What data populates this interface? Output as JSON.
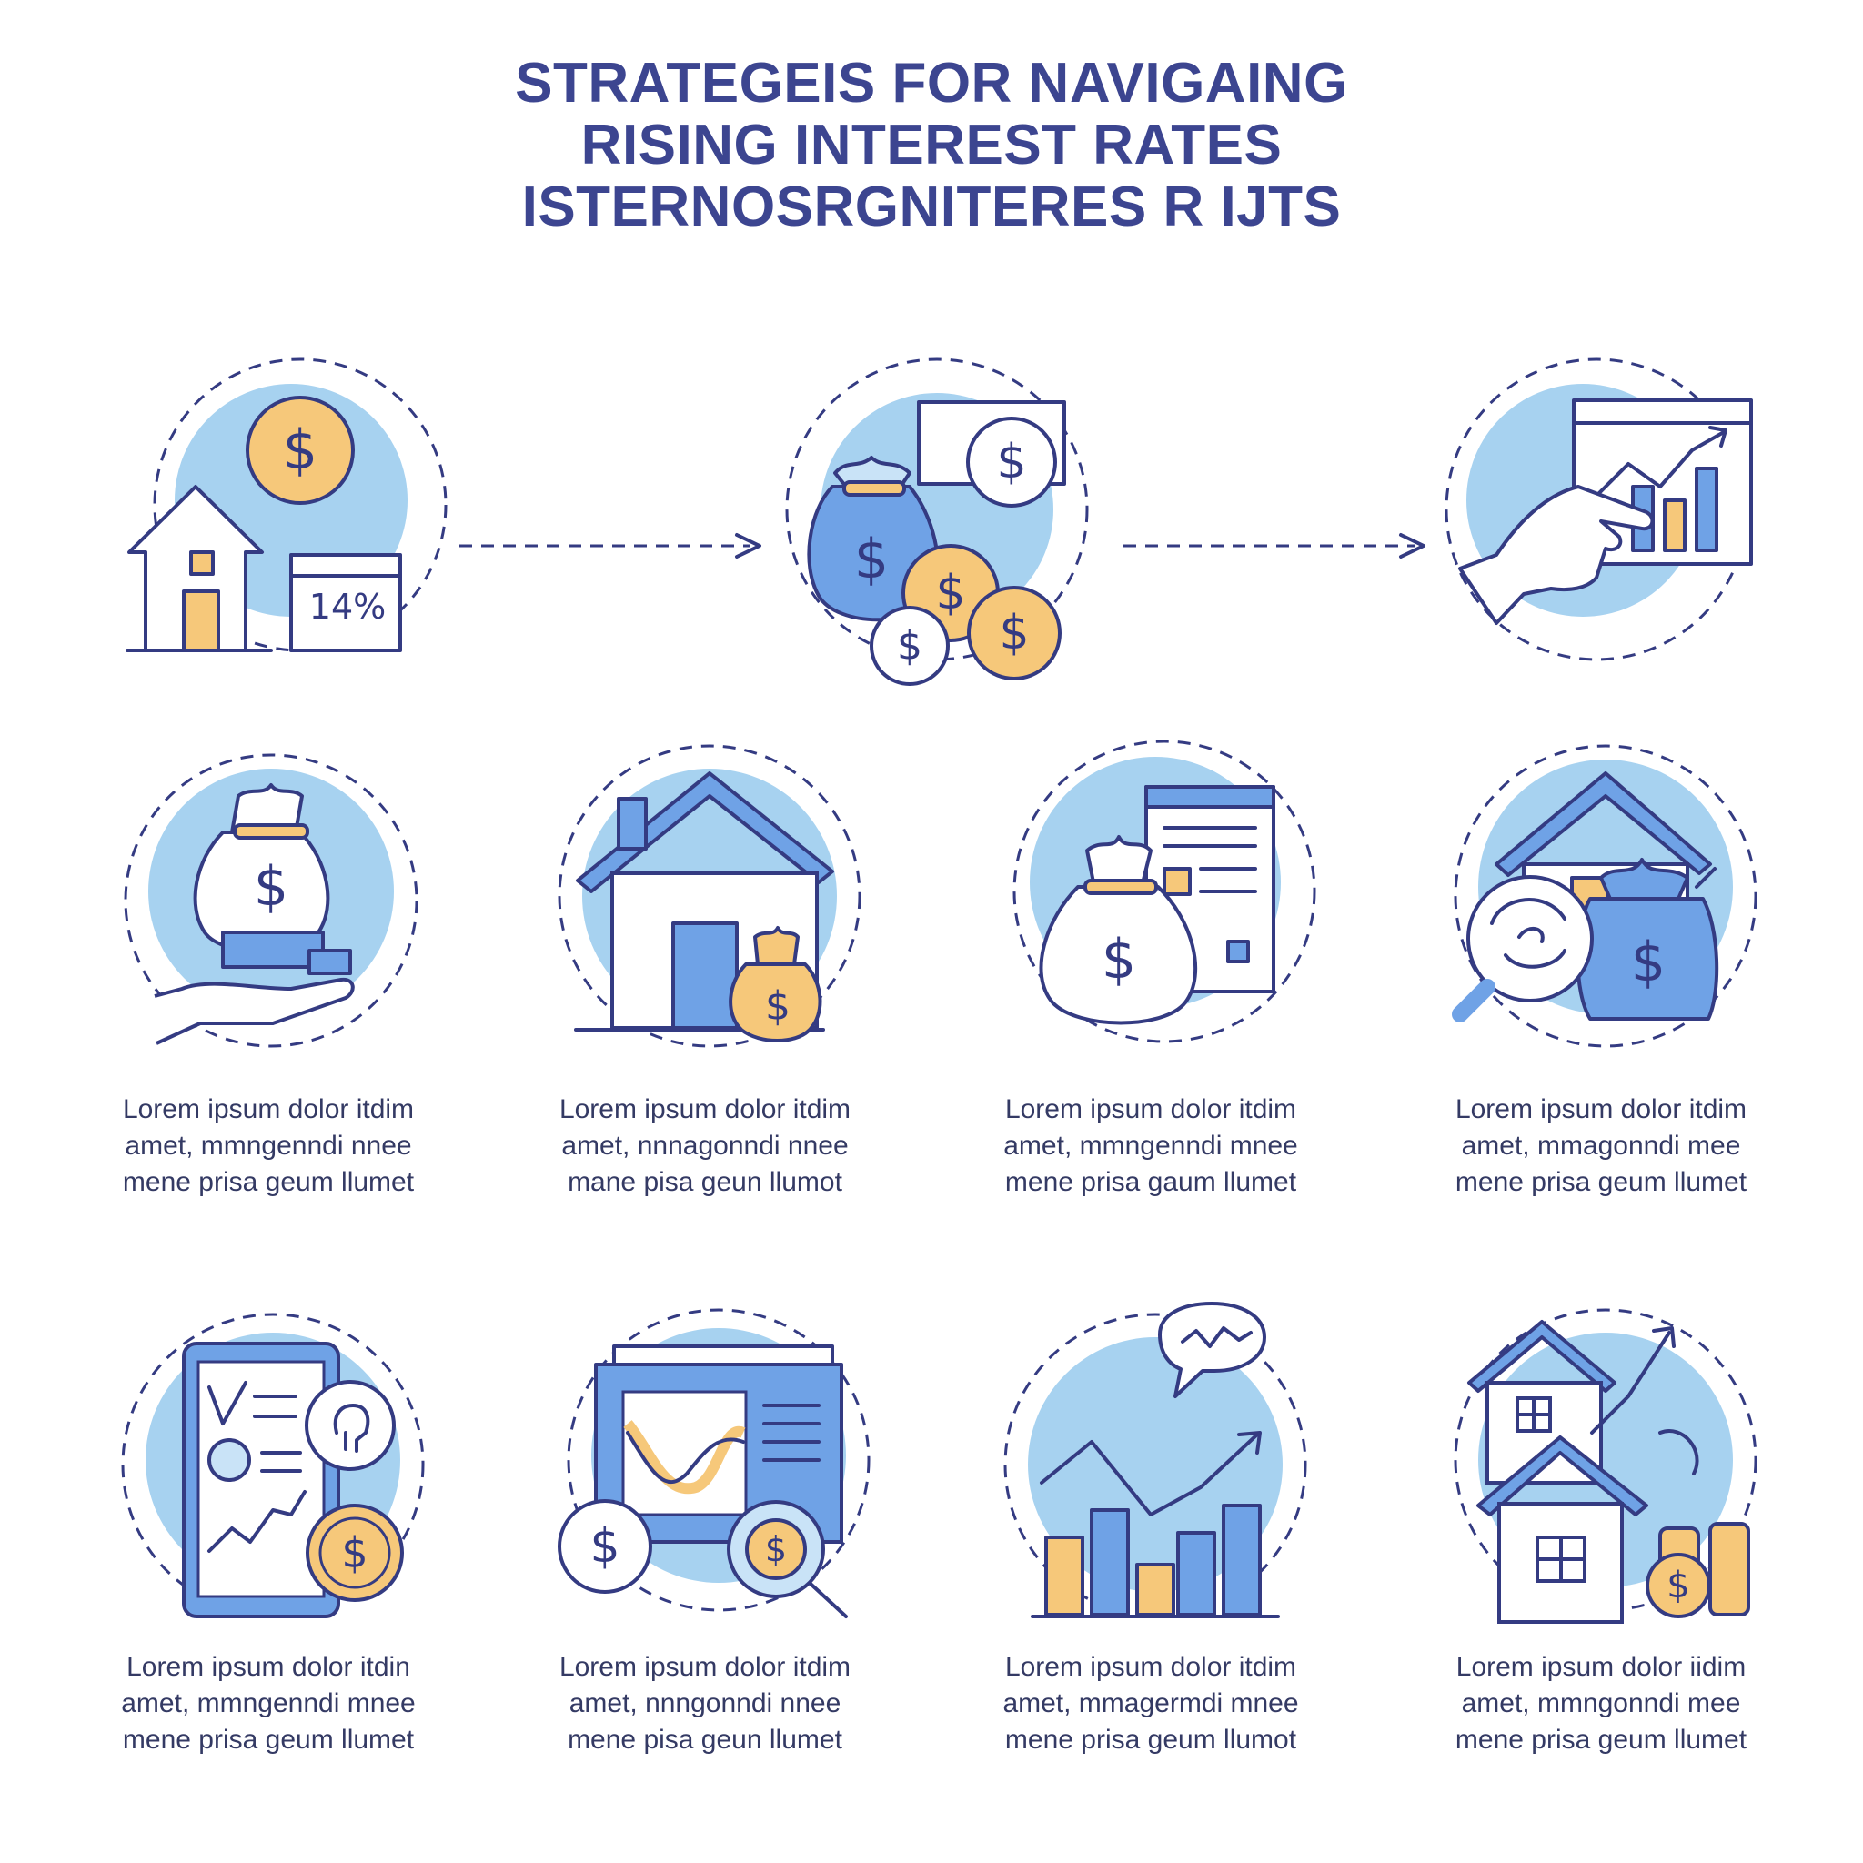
{
  "title": {
    "line1": "STRATEGEIS FOR NAVIGAING",
    "line2": "RISING INTEREST RATES",
    "line3": "ISTERNOSRGNITERES R IJTS"
  },
  "top_row": {
    "rate_label": "14%"
  },
  "icons": {
    "dollar_symbol": "$"
  },
  "captions": [
    {
      "l1": "Lorem ipsum dolor itdim",
      "l2": "amet, mmngenndi nnee",
      "l3": "mene prisa geum llumet"
    },
    {
      "l1": "Lorem ipsum dolor itdim",
      "l2": "amet, nnnagonndi nnee",
      "l3": "mane pisa geun llumot"
    },
    {
      "l1": "Lorem ipsum dolor itdim",
      "l2": "amet, mmngenndi mnee",
      "l3": "mene prisa gaum llumet"
    },
    {
      "l1": "Lorem ipsum dolor itdim",
      "l2": "amet, mmagonndi mee",
      "l3": "mene prisa geum llumet"
    },
    {
      "l1": "Lorem ipsum dolor itdin",
      "l2": "amet, mmngenndi mnee",
      "l3": "mene prisa geum llumet"
    },
    {
      "l1": "Lorem ipsum dolor itdim",
      "l2": "amet, nnngonndi nnee",
      "l3": "mene pisa geun llumet"
    },
    {
      "l1": "Lorem ipsum dolor itdim",
      "l2": "amet, mmagermdi mnee",
      "l3": "mene prisa geum llumot"
    },
    {
      "l1": "Lorem ipsum dolor iidim",
      "l2": "amet, mmngonndi mee",
      "l3": "mene prisa geum llumet"
    }
  ],
  "colors": {
    "ink": "#343b82",
    "title": "#3c4590",
    "light_blue": "#a7d2f0",
    "gold": "#f6c87a",
    "blue": "#6fa2e6"
  }
}
